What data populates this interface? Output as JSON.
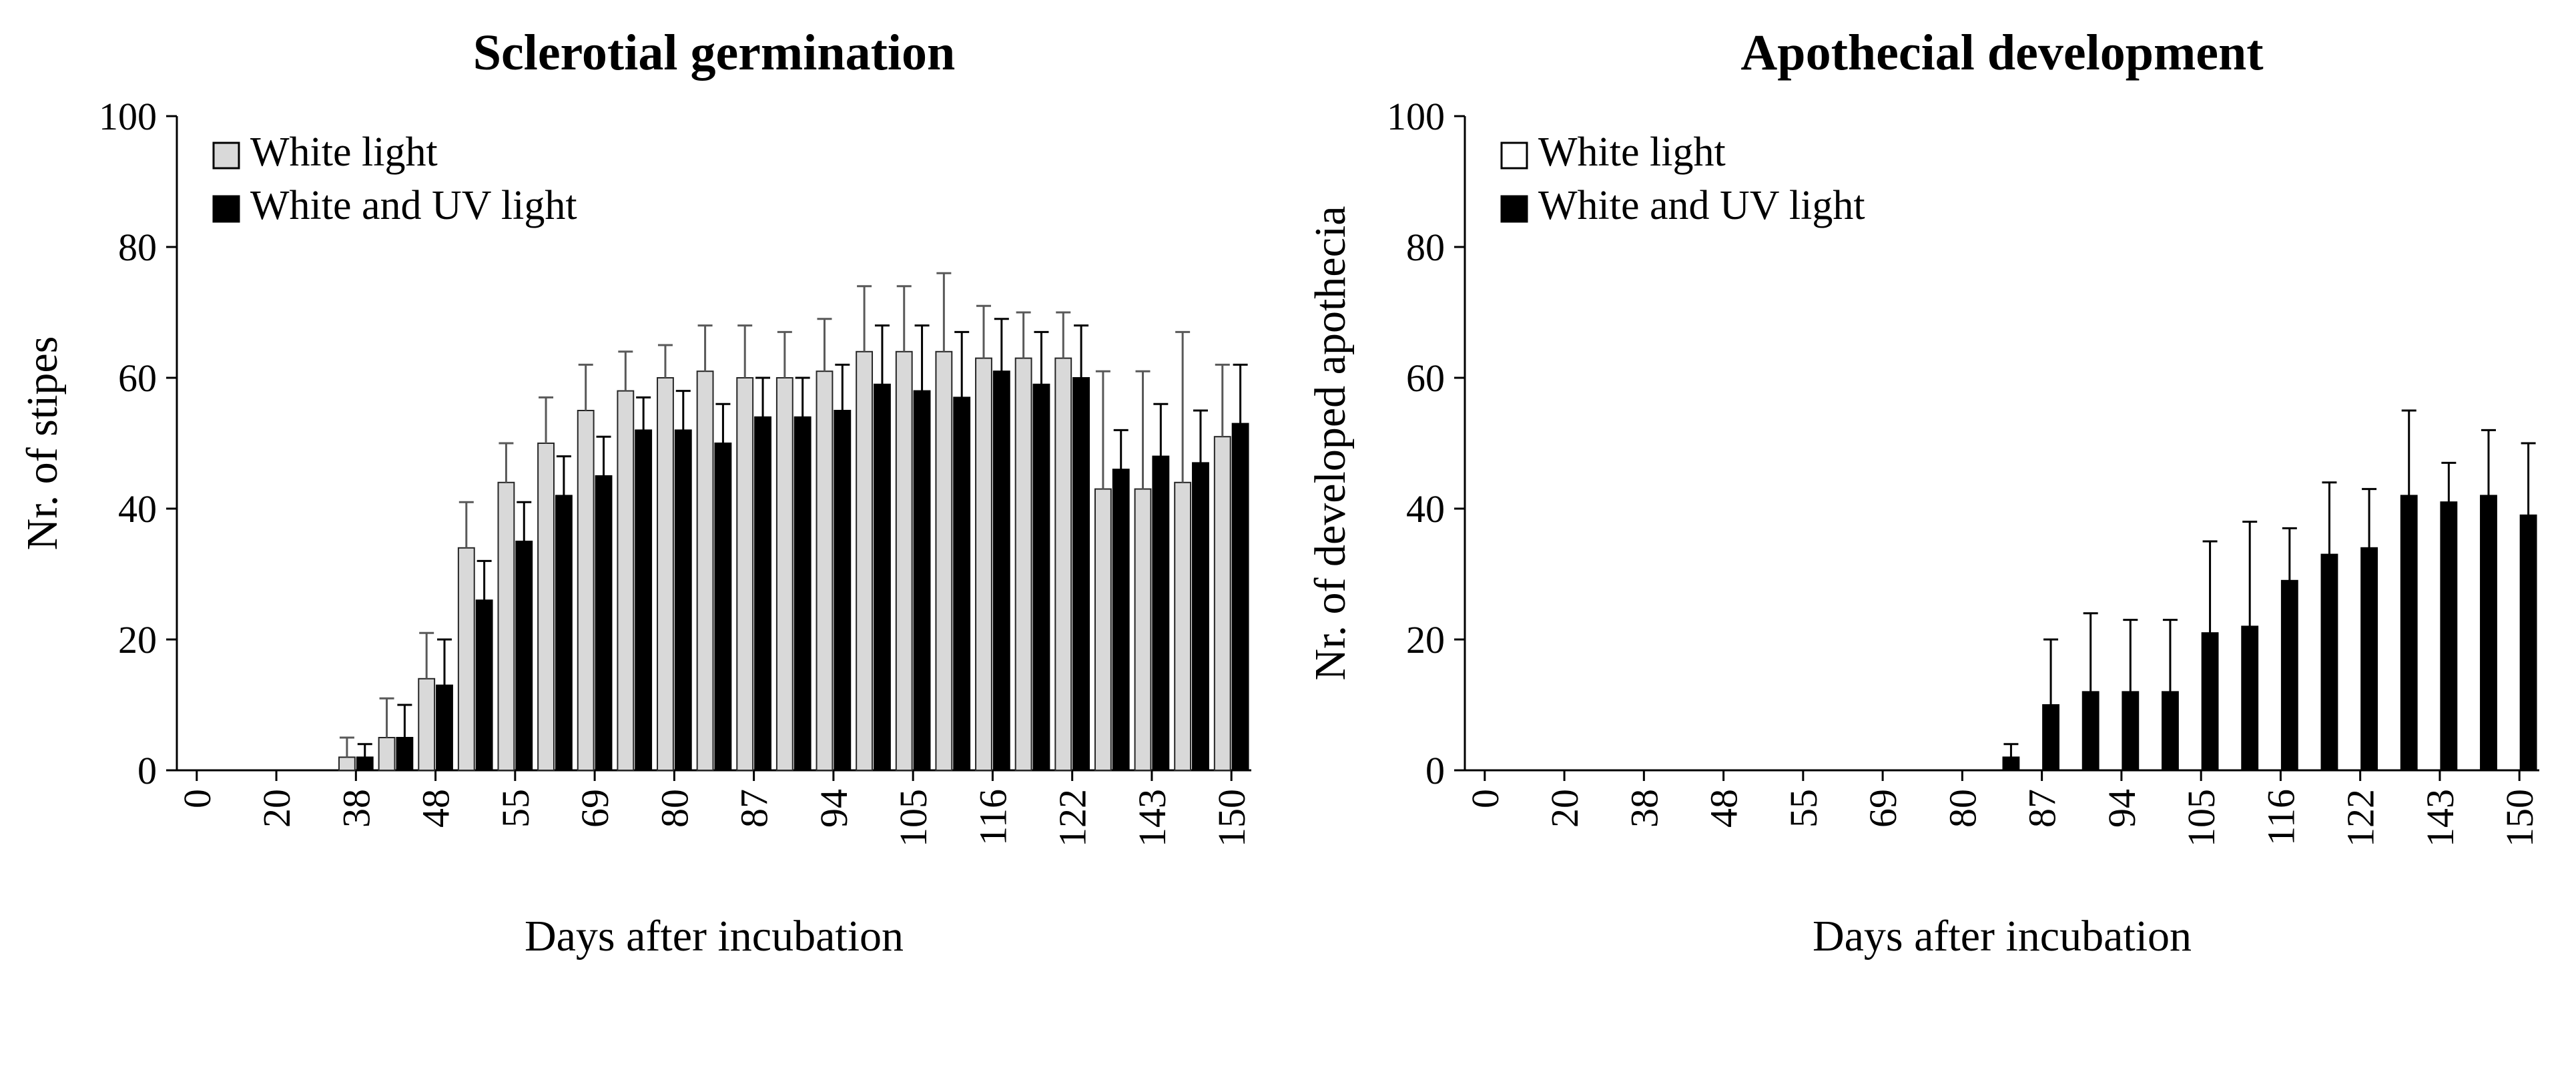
{
  "chart_data": [
    {
      "type": "bar",
      "title": "Sclerotial germination",
      "xlabel": "Days after incubation",
      "ylabel": "Nr. of stipes",
      "ylim": [
        0,
        100
      ],
      "yticks": [
        0,
        20,
        40,
        60,
        80,
        100
      ],
      "grid": false,
      "legend_position": "top-left-inside",
      "categories": [
        "0",
        "",
        "20",
        "",
        "38",
        "",
        "48",
        "",
        "55",
        "",
        "69",
        "",
        "80",
        "",
        "87",
        "",
        "94",
        "",
        "105",
        "",
        "116",
        "",
        "122",
        "",
        "143",
        "",
        "150"
      ],
      "series": [
        {
          "name": "White light",
          "fill": "#d9d9d9",
          "stroke": "#262626",
          "err_color": "#595959",
          "values": [
            0,
            0,
            0,
            0,
            2,
            5,
            14,
            34,
            44,
            50,
            55,
            58,
            60,
            61,
            60,
            60,
            61,
            64,
            64,
            64,
            63,
            63,
            63,
            43,
            43,
            44,
            51
          ],
          "errors": [
            0,
            0,
            0,
            0,
            3,
            6,
            7,
            7,
            6,
            7,
            7,
            6,
            5,
            7,
            8,
            7,
            8,
            10,
            10,
            12,
            8,
            7,
            7,
            18,
            18,
            23,
            11
          ]
        },
        {
          "name": "White and UV light",
          "fill": "#000000",
          "stroke": "#000000",
          "err_color": "#000000",
          "values": [
            0,
            0,
            0,
            0,
            2,
            5,
            13,
            26,
            35,
            42,
            45,
            52,
            52,
            50,
            54,
            54,
            55,
            59,
            58,
            57,
            61,
            59,
            60,
            46,
            48,
            47,
            53
          ],
          "errors": [
            0,
            0,
            0,
            0,
            2,
            5,
            7,
            6,
            6,
            6,
            6,
            5,
            6,
            6,
            6,
            6,
            7,
            9,
            10,
            10,
            8,
            8,
            8,
            6,
            8,
            8,
            9
          ]
        }
      ]
    },
    {
      "type": "bar",
      "title": "Apothecial development",
      "xlabel": "Days after incubation",
      "ylabel": "Nr. of developed apothecia",
      "ylim": [
        0,
        100
      ],
      "yticks": [
        0,
        20,
        40,
        60,
        80,
        100
      ],
      "grid": false,
      "legend_position": "top-left-inside",
      "categories": [
        "0",
        "",
        "20",
        "",
        "38",
        "",
        "48",
        "",
        "55",
        "",
        "69",
        "",
        "80",
        "",
        "87",
        "",
        "94",
        "",
        "105",
        "",
        "116",
        "",
        "122",
        "",
        "143",
        "",
        "150"
      ],
      "series": [
        {
          "name": "White light",
          "fill": "#ffffff",
          "stroke": "#000000",
          "err_color": "#595959",
          "values": [
            0,
            0,
            0,
            0,
            0,
            0,
            0,
            0,
            0,
            0,
            0,
            0,
            0,
            0,
            0,
            0,
            0,
            0,
            0,
            0,
            0,
            0,
            0,
            0,
            0,
            0,
            0
          ],
          "errors": [
            0,
            0,
            0,
            0,
            0,
            0,
            0,
            0,
            0,
            0,
            0,
            0,
            0,
            0,
            0,
            0,
            0,
            0,
            0,
            0,
            0,
            0,
            0,
            0,
            0,
            0,
            0
          ]
        },
        {
          "name": "White and UV light",
          "fill": "#000000",
          "stroke": "#000000",
          "err_color": "#000000",
          "values": [
            0,
            0,
            0,
            0,
            0,
            0,
            0,
            0,
            0,
            0,
            0,
            0,
            0,
            2,
            10,
            12,
            12,
            12,
            21,
            22,
            29,
            33,
            34,
            42,
            41,
            42,
            39
          ],
          "errors": [
            0,
            0,
            0,
            0,
            0,
            0,
            0,
            0,
            0,
            0,
            0,
            0,
            0,
            2,
            10,
            12,
            11,
            11,
            14,
            16,
            8,
            11,
            9,
            13,
            6,
            10,
            11
          ]
        }
      ]
    }
  ]
}
